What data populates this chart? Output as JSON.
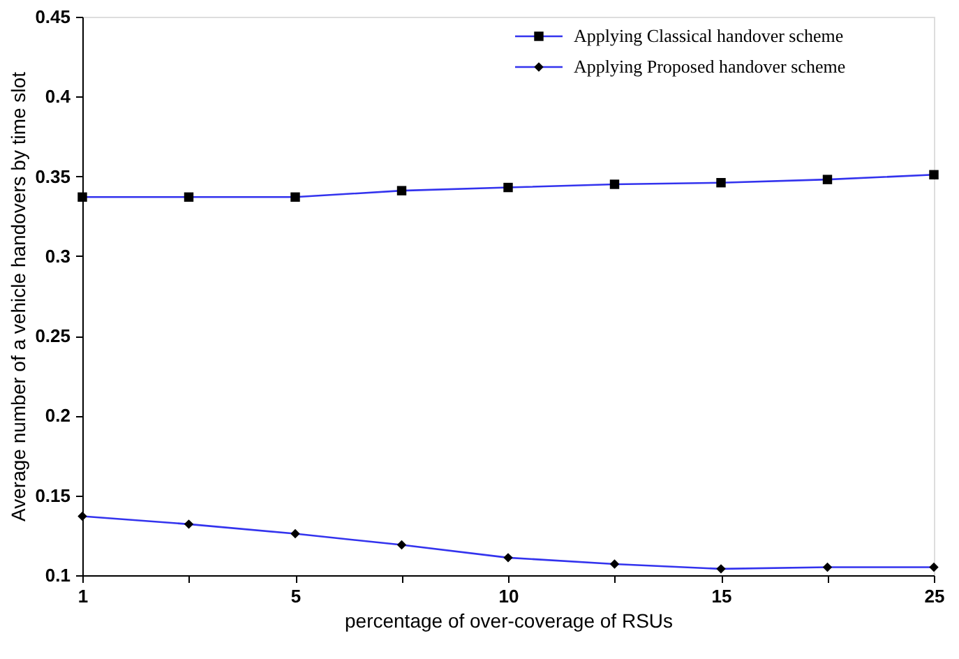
{
  "chart_data": {
    "type": "line",
    "xlabel": "percentage of over-coverage of RSUs",
    "ylabel": "Average number of a vehicle handovers by time slot",
    "categories": [
      "1",
      null,
      "5",
      null,
      "10",
      null,
      "15",
      null,
      "25"
    ],
    "ylim": [
      0.1,
      0.45
    ],
    "yticks": [
      0.1,
      0.15,
      0.2,
      0.25,
      0.3,
      0.35,
      0.4,
      0.45
    ],
    "series": [
      {
        "name": "Applying Classical handover scheme",
        "color": "#3333ee",
        "marker": "square",
        "values": [
          0.337,
          0.337,
          0.337,
          0.341,
          0.343,
          0.345,
          0.346,
          0.348,
          0.351
        ]
      },
      {
        "name": "Applying Proposed handover scheme",
        "color": "#3333ee",
        "marker": "diamond",
        "values": [
          0.137,
          0.132,
          0.126,
          0.119,
          0.111,
          0.107,
          0.104,
          0.105,
          0.105
        ]
      }
    ],
    "grid": false,
    "legend": "top right",
    "line_style": "solid"
  }
}
